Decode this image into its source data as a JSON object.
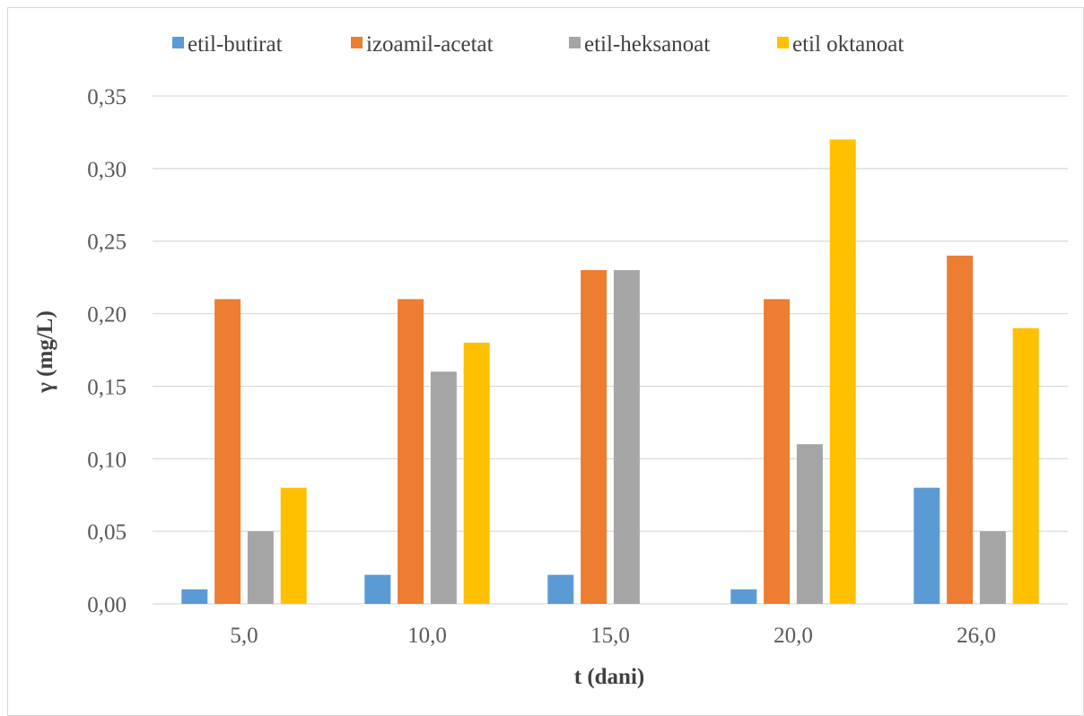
{
  "chart_data": {
    "type": "bar",
    "title": "",
    "xlabel": "t (dani)",
    "ylabel": "γ (mg/L)",
    "categories": [
      "5,0",
      "10,0",
      "15,0",
      "20,0",
      "26,0"
    ],
    "ylim": [
      0,
      0.35
    ],
    "yticks": [
      0,
      0.05,
      0.1,
      0.15,
      0.2,
      0.25,
      0.3,
      0.35
    ],
    "ytick_labels": [
      "0,00",
      "0,05",
      "0,10",
      "0,15",
      "0,20",
      "0,25",
      "0,30",
      "0,35"
    ],
    "grid": true,
    "legend_position": "top",
    "series": [
      {
        "name": "etil-butirat",
        "color": "#5b9bd5",
        "values": [
          0.01,
          0.02,
          0.02,
          0.01,
          0.08
        ]
      },
      {
        "name": "izoamil-acetat",
        "color": "#ed7d31",
        "values": [
          0.21,
          0.21,
          0.23,
          0.21,
          0.24
        ]
      },
      {
        "name": "etil-heksanoat",
        "color": "#a5a5a5",
        "values": [
          0.05,
          0.16,
          0.23,
          0.11,
          0.05
        ]
      },
      {
        "name": "etil oktanoat",
        "color": "#ffc000",
        "values": [
          0.08,
          0.18,
          0.0,
          0.32,
          0.19
        ]
      }
    ]
  }
}
